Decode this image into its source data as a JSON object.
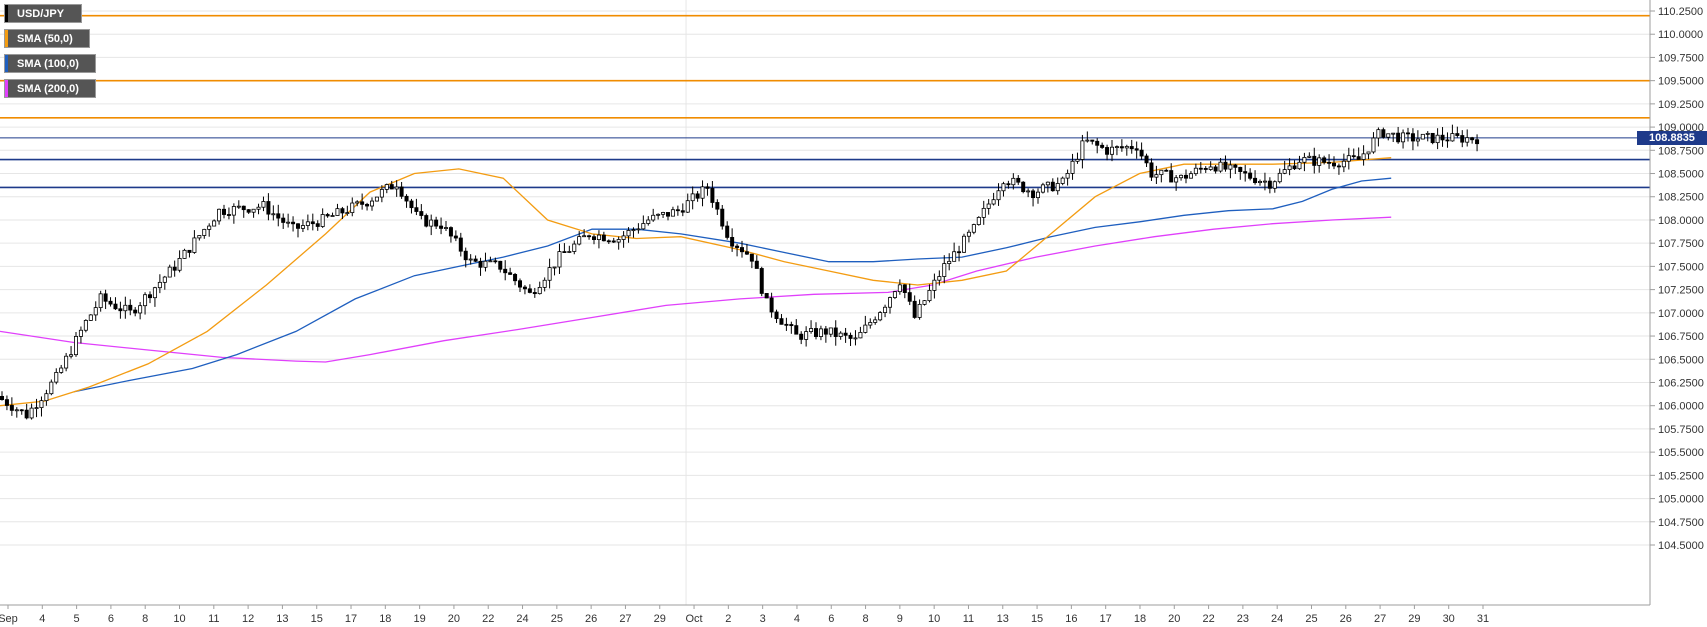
{
  "legend": {
    "pair": "USD/JPY",
    "sma50": "SMA (50,0)",
    "sma100": "SMA (100,0)",
    "sma200": "SMA (200,0)"
  },
  "colors": {
    "sma50": "#f39c12",
    "sma100": "#1f5fbf",
    "sma200": "#e040fb",
    "resistance": "#f08c00",
    "support": "#1e3a8a",
    "current": "#1e3a8a",
    "candle": "#000000"
  },
  "chart_data": {
    "type": "candlestick",
    "symbol": "USD/JPY",
    "current_price": "108.8835",
    "ylim": [
      104.4,
      110.35
    ],
    "y_ticks": [
      "110.2500",
      "110.0000",
      "109.7500",
      "109.5000",
      "109.2500",
      "109.0000",
      "108.7500",
      "108.5000",
      "108.2500",
      "108.0000",
      "107.7500",
      "107.5000",
      "107.2500",
      "107.0000",
      "106.7500",
      "106.5000",
      "106.2500",
      "106.0000",
      "105.7500",
      "105.5000",
      "105.2500",
      "105.0000",
      "104.7500",
      "104.5000"
    ],
    "x_labels": [
      "Sep",
      "4",
      "5",
      "6",
      "8",
      "10",
      "11",
      "12",
      "13",
      "15",
      "17",
      "18",
      "19",
      "20",
      "22",
      "24",
      "25",
      "26",
      "27",
      "29",
      "Oct",
      "2",
      "3",
      "4",
      "6",
      "8",
      "9",
      "10",
      "11",
      "13",
      "15",
      "16",
      "17",
      "18",
      "20",
      "22",
      "23",
      "24",
      "25",
      "26",
      "27",
      "29",
      "30",
      "31"
    ],
    "horizontal_levels": {
      "resistance": [
        110.2,
        109.5,
        109.1
      ],
      "support": [
        108.65,
        108.35
      ],
      "current": 108.8835
    },
    "sma50": [
      [
        0,
        106.0
      ],
      [
        0.03,
        106.05
      ],
      [
        0.06,
        106.2
      ],
      [
        0.1,
        106.45
      ],
      [
        0.14,
        106.8
      ],
      [
        0.18,
        107.3
      ],
      [
        0.22,
        107.85
      ],
      [
        0.25,
        108.3
      ],
      [
        0.28,
        108.5
      ],
      [
        0.31,
        108.55
      ],
      [
        0.34,
        108.45
      ],
      [
        0.37,
        108.0
      ],
      [
        0.4,
        107.85
      ],
      [
        0.43,
        107.8
      ],
      [
        0.46,
        107.82
      ],
      [
        0.5,
        107.68
      ],
      [
        0.53,
        107.55
      ],
      [
        0.56,
        107.45
      ],
      [
        0.59,
        107.35
      ],
      [
        0.62,
        107.3
      ],
      [
        0.65,
        107.35
      ],
      [
        0.68,
        107.45
      ],
      [
        0.71,
        107.85
      ],
      [
        0.74,
        108.25
      ],
      [
        0.77,
        108.5
      ],
      [
        0.8,
        108.6
      ],
      [
        0.83,
        108.6
      ],
      [
        0.86,
        108.6
      ],
      [
        0.9,
        108.62
      ],
      [
        0.94,
        108.67
      ]
    ],
    "sma100": [
      [
        0.05,
        106.15
      ],
      [
        0.09,
        106.28
      ],
      [
        0.13,
        106.4
      ],
      [
        0.16,
        106.55
      ],
      [
        0.2,
        106.8
      ],
      [
        0.24,
        107.15
      ],
      [
        0.28,
        107.4
      ],
      [
        0.31,
        107.5
      ],
      [
        0.34,
        107.6
      ],
      [
        0.37,
        107.72
      ],
      [
        0.4,
        107.9
      ],
      [
        0.43,
        107.9
      ],
      [
        0.46,
        107.85
      ],
      [
        0.5,
        107.75
      ],
      [
        0.53,
        107.65
      ],
      [
        0.56,
        107.55
      ],
      [
        0.59,
        107.55
      ],
      [
        0.62,
        107.58
      ],
      [
        0.65,
        107.6
      ],
      [
        0.68,
        107.7
      ],
      [
        0.71,
        107.82
      ],
      [
        0.74,
        107.92
      ],
      [
        0.77,
        107.98
      ],
      [
        0.8,
        108.05
      ],
      [
        0.83,
        108.1
      ],
      [
        0.86,
        108.12
      ],
      [
        0.88,
        108.2
      ],
      [
        0.9,
        108.33
      ],
      [
        0.92,
        108.42
      ],
      [
        0.94,
        108.45
      ]
    ],
    "sma200": [
      [
        0,
        106.8
      ],
      [
        0.05,
        106.68
      ],
      [
        0.1,
        106.6
      ],
      [
        0.15,
        106.52
      ],
      [
        0.2,
        106.48
      ],
      [
        0.22,
        106.47
      ],
      [
        0.25,
        106.55
      ],
      [
        0.3,
        106.7
      ],
      [
        0.35,
        106.82
      ],
      [
        0.4,
        106.95
      ],
      [
        0.45,
        107.08
      ],
      [
        0.5,
        107.15
      ],
      [
        0.55,
        107.2
      ],
      [
        0.6,
        107.22
      ],
      [
        0.63,
        107.3
      ],
      [
        0.66,
        107.45
      ],
      [
        0.7,
        107.6
      ],
      [
        0.74,
        107.72
      ],
      [
        0.78,
        107.82
      ],
      [
        0.82,
        107.9
      ],
      [
        0.86,
        107.96
      ],
      [
        0.9,
        108.0
      ],
      [
        0.94,
        108.03
      ]
    ]
  }
}
